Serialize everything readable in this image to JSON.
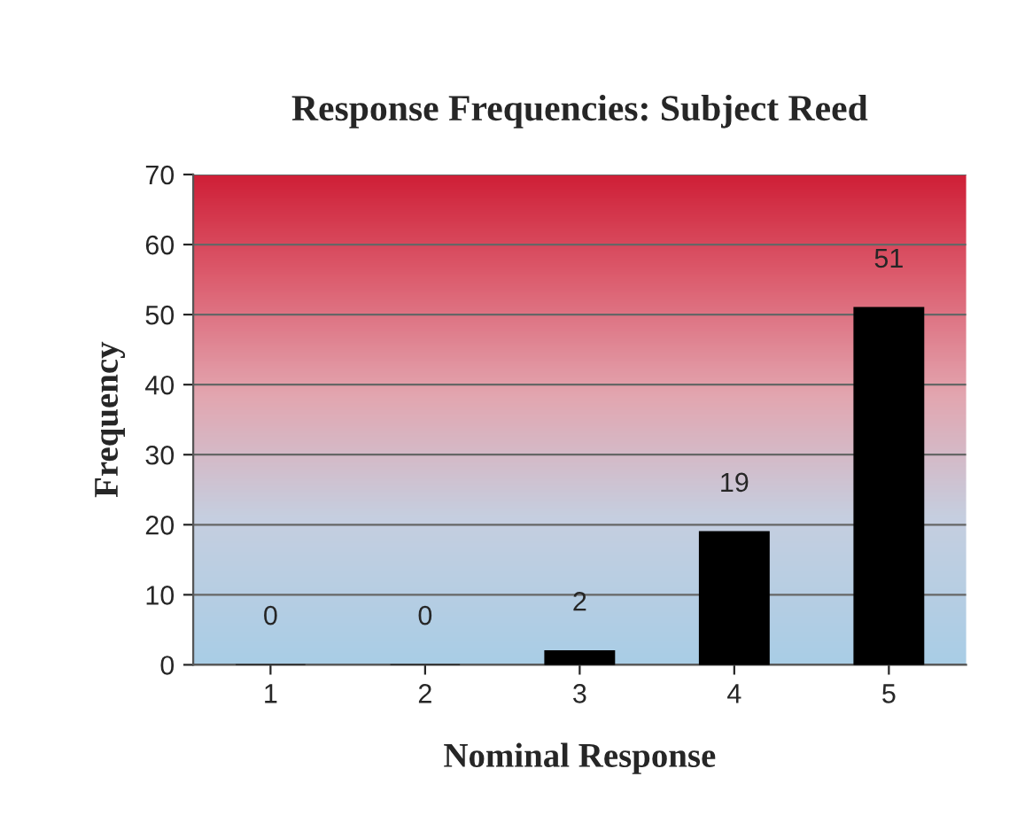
{
  "chart_data": {
    "type": "bar",
    "title": "Response Frequencies: Subject Reed",
    "xlabel": "Nominal Response",
    "ylabel": "Frequency",
    "categories": [
      "1",
      "2",
      "3",
      "4",
      "5"
    ],
    "values": [
      0,
      0,
      2,
      19,
      51
    ],
    "color": "#000000",
    "ylim": [
      0,
      70
    ],
    "yticks": [
      0,
      10,
      20,
      30,
      40,
      50,
      60,
      70
    ],
    "grid": "y",
    "data_labels": true
  }
}
